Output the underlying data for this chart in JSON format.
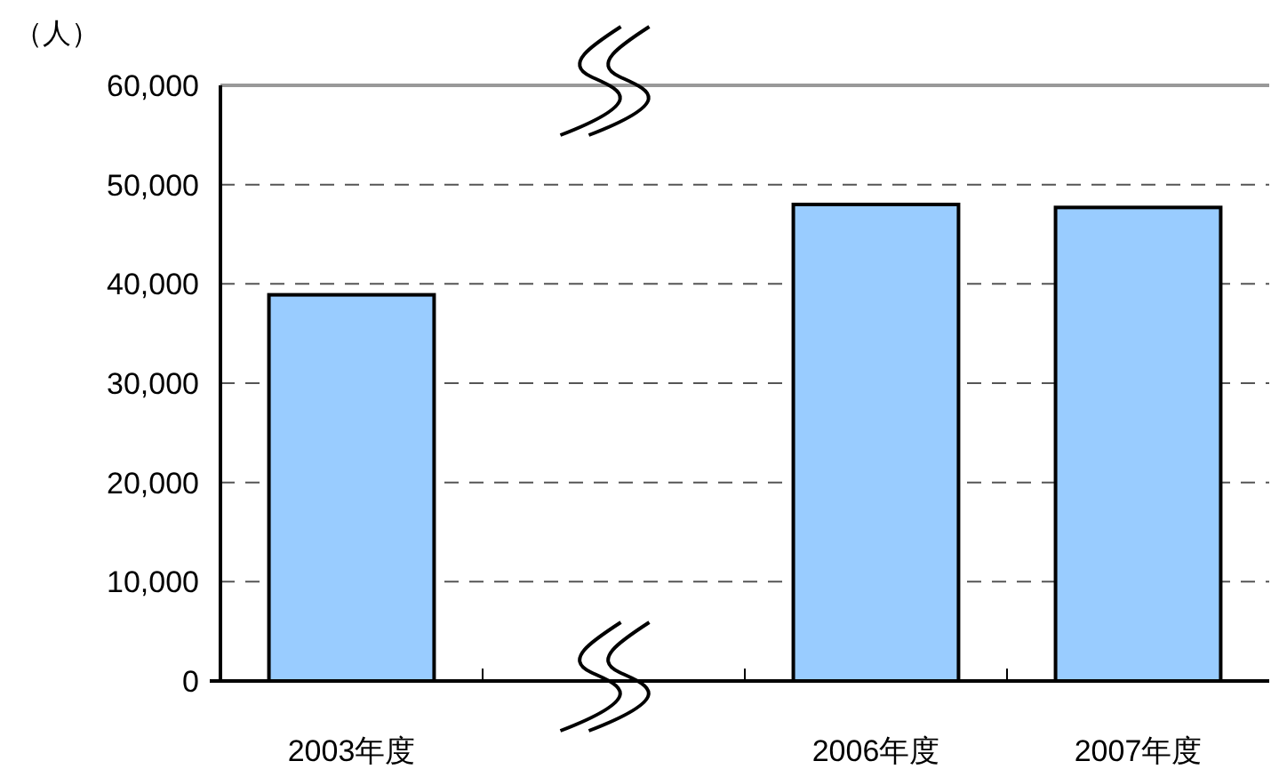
{
  "chart_data": {
    "type": "bar",
    "ylabel": "（人）",
    "categories": [
      "2003年度",
      null,
      "2006年度",
      "2007年度"
    ],
    "values": [
      38900,
      null,
      48000,
      47700
    ],
    "color": "#99ccff",
    "ylim": [
      0,
      60000
    ],
    "yticks": [
      {
        "value": 0,
        "label": "0"
      },
      {
        "value": 10000,
        "label": "10,000"
      },
      {
        "value": 20000,
        "label": "20,000"
      },
      {
        "value": 30000,
        "label": "30,000"
      },
      {
        "value": 40000,
        "label": "40,000"
      },
      {
        "value": 50000,
        "label": "50,000"
      },
      {
        "value": 60000,
        "label": "60,000"
      }
    ],
    "grid": "y"
  }
}
